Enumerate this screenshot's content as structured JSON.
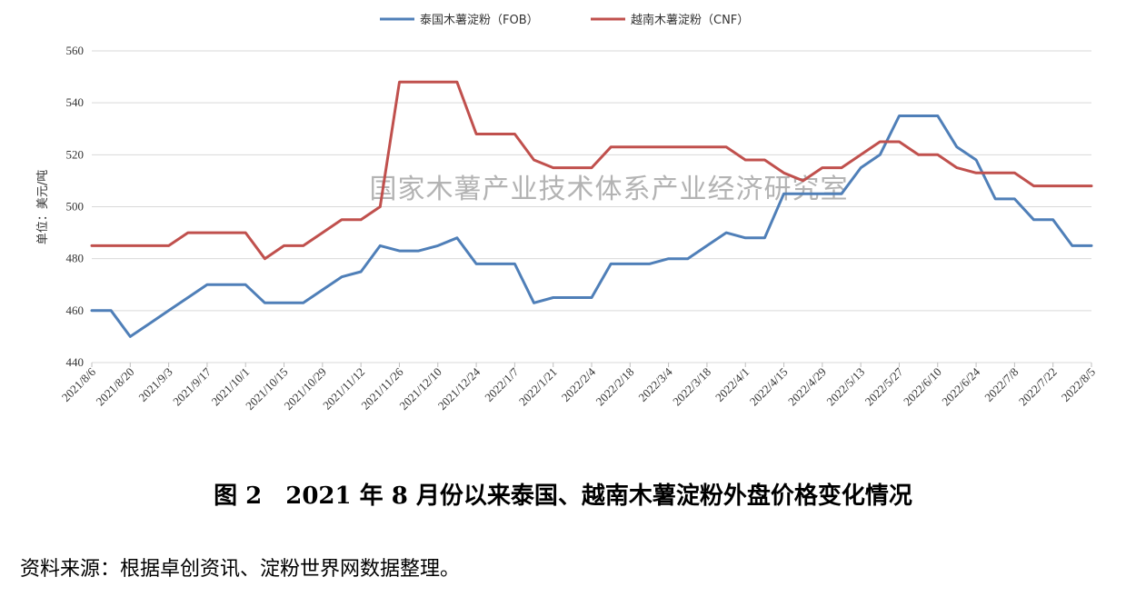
{
  "chart_data": {
    "type": "line",
    "ylabel": "单位：美元/吨",
    "ylim": [
      440,
      560
    ],
    "yticks": [
      440,
      460,
      480,
      500,
      520,
      540,
      560
    ],
    "grid": true,
    "legend_position": "top-center",
    "watermark": "国家木薯产业技术体系产业经济研究室",
    "x": [
      "2021/8/6",
      "2021/8/13",
      "2021/8/20",
      "2021/8/27",
      "2021/9/3",
      "2021/9/10",
      "2021/9/17",
      "2021/9/24",
      "2021/10/1",
      "2021/10/8",
      "2021/10/15",
      "2021/10/22",
      "2021/10/29",
      "2021/11/5",
      "2021/11/12",
      "2021/11/19",
      "2021/11/26",
      "2021/12/3",
      "2021/12/10",
      "2021/12/17",
      "2021/12/24",
      "2021/12/31",
      "2022/1/7",
      "2022/1/14",
      "2022/1/21",
      "2022/1/28",
      "2022/2/4",
      "2022/2/11",
      "2022/2/18",
      "2022/2/25",
      "2022/3/4",
      "2022/3/11",
      "2022/3/18",
      "2022/3/25",
      "2022/4/1",
      "2022/4/8",
      "2022/4/15",
      "2022/4/22",
      "2022/4/29",
      "2022/5/6",
      "2022/5/13",
      "2022/5/20",
      "2022/5/27",
      "2022/6/3",
      "2022/6/10",
      "2022/6/17",
      "2022/6/24",
      "2022/7/1",
      "2022/7/8",
      "2022/7/15",
      "2022/7/22",
      "2022/7/29",
      "2022/8/5"
    ],
    "x_tick_labels": [
      "2021/8/6",
      "2021/8/20",
      "2021/9/3",
      "2021/9/17",
      "2021/10/1",
      "2021/10/15",
      "2021/10/29",
      "2021/11/12",
      "2021/11/26",
      "2021/12/10",
      "2021/12/24",
      "2022/1/7",
      "2022/1/21",
      "2022/2/4",
      "2022/2/18",
      "2022/3/4",
      "2022/3/18",
      "2022/4/1",
      "2022/4/15",
      "2022/4/29",
      "2022/5/13",
      "2022/5/27",
      "2022/6/10",
      "2022/6/24",
      "2022/7/8",
      "2022/7/22",
      "2022/8/5"
    ],
    "series": [
      {
        "name": "泰国木薯淀粉（FOB）",
        "color": "#4f7fb8",
        "values": [
          460,
          460,
          450,
          455,
          460,
          465,
          470,
          470,
          470,
          463,
          463,
          463,
          468,
          473,
          475,
          485,
          483,
          483,
          485,
          488,
          478,
          478,
          478,
          463,
          465,
          465,
          465,
          478,
          478,
          478,
          480,
          480,
          485,
          490,
          488,
          488,
          505,
          505,
          505,
          505,
          515,
          520,
          535,
          535,
          535,
          523,
          518,
          503,
          503,
          495,
          495,
          485,
          485
        ]
      },
      {
        "name": "越南木薯淀粉（CNF）",
        "color": "#c0504d",
        "values": [
          485,
          485,
          485,
          485,
          485,
          490,
          490,
          490,
          490,
          480,
          485,
          485,
          490,
          495,
          495,
          500,
          548,
          548,
          548,
          548,
          528,
          528,
          528,
          518,
          515,
          515,
          515,
          523,
          523,
          523,
          523,
          523,
          523,
          523,
          518,
          518,
          513,
          510,
          515,
          515,
          520,
          525,
          525,
          520,
          520,
          515,
          513,
          513,
          513,
          508,
          508,
          508,
          508
        ]
      }
    ]
  },
  "caption": "图 2　2021 年 8 月份以来泰国、越南木薯淀粉外盘价格变化情况",
  "source": "资料来源：根据卓创资讯、淀粉世界网数据整理。"
}
